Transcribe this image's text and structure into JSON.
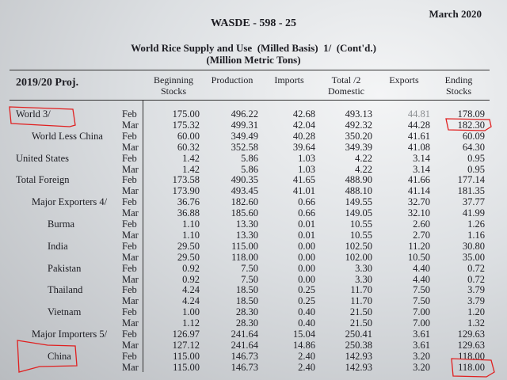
{
  "date": "March 2020",
  "report": "WASDE - 598 - 25",
  "title": "World Rice Supply and Use  (Milled Basis)  1/  (Cont'd.)",
  "subtitle": "(Million Metric Tons)",
  "period": "2019/20 Proj.",
  "columns": [
    "Beginning Stocks",
    "Production",
    "Imports",
    "Total /2 Domestic",
    "Exports",
    "Ending Stocks"
  ],
  "column_lines": [
    [
      "Beginning",
      "Stocks"
    ],
    [
      "Production",
      ""
    ],
    [
      "Imports",
      ""
    ],
    [
      "Total /2",
      "Domestic"
    ],
    [
      "Exports",
      ""
    ],
    [
      "Ending",
      "Stocks"
    ]
  ],
  "annotation_color": "#e02020",
  "rows": [
    {
      "name": "World  3/",
      "indent": 0,
      "month": "Feb",
      "v": [
        "175.00",
        "496.22",
        "42.68",
        "493.13",
        "44.81",
        "178.09"
      ]
    },
    {
      "name": "",
      "indent": 0,
      "month": "Mar",
      "v": [
        "175.32",
        "499.31",
        "42.04",
        "492.32",
        "44.28",
        "182.30"
      ]
    },
    {
      "name": "World Less China",
      "indent": 1,
      "month": "Feb",
      "v": [
        "60.00",
        "349.49",
        "40.28",
        "350.20",
        "41.61",
        "60.09"
      ]
    },
    {
      "name": "",
      "indent": 0,
      "month": "Mar",
      "v": [
        "60.32",
        "352.58",
        "39.64",
        "349.39",
        "41.08",
        "64.30"
      ]
    },
    {
      "name": "United States",
      "indent": 0,
      "month": "Feb",
      "v": [
        "1.42",
        "5.86",
        "1.03",
        "4.22",
        "3.14",
        "0.95"
      ]
    },
    {
      "name": "",
      "indent": 0,
      "month": "Mar",
      "v": [
        "1.42",
        "5.86",
        "1.03",
        "4.22",
        "3.14",
        "0.95"
      ]
    },
    {
      "name": "Total Foreign",
      "indent": 0,
      "month": "Feb",
      "v": [
        "173.58",
        "490.35",
        "41.65",
        "488.90",
        "41.66",
        "177.14"
      ]
    },
    {
      "name": "",
      "indent": 0,
      "month": "Mar",
      "v": [
        "173.90",
        "493.45",
        "41.01",
        "488.10",
        "41.14",
        "181.35"
      ]
    },
    {
      "name": "Major Exporters  4/",
      "indent": 1,
      "month": "Feb",
      "v": [
        "36.76",
        "182.60",
        "0.66",
        "149.55",
        "32.70",
        "37.77"
      ]
    },
    {
      "name": "",
      "indent": 0,
      "month": "Mar",
      "v": [
        "36.88",
        "185.60",
        "0.66",
        "149.05",
        "32.10",
        "41.99"
      ]
    },
    {
      "name": "Burma",
      "indent": 2,
      "month": "Feb",
      "v": [
        "1.10",
        "13.30",
        "0.01",
        "10.55",
        "2.60",
        "1.26"
      ]
    },
    {
      "name": "",
      "indent": 0,
      "month": "Mar",
      "v": [
        "1.10",
        "13.30",
        "0.01",
        "10.55",
        "2.70",
        "1.16"
      ]
    },
    {
      "name": "India",
      "indent": 2,
      "month": "Feb",
      "v": [
        "29.50",
        "115.00",
        "0.00",
        "102.50",
        "11.20",
        "30.80"
      ]
    },
    {
      "name": "",
      "indent": 0,
      "month": "Mar",
      "v": [
        "29.50",
        "118.00",
        "0.00",
        "102.00",
        "10.50",
        "35.00"
      ]
    },
    {
      "name": "Pakistan",
      "indent": 2,
      "month": "Feb",
      "v": [
        "0.92",
        "7.50",
        "0.00",
        "3.30",
        "4.40",
        "0.72"
      ]
    },
    {
      "name": "",
      "indent": 0,
      "month": "Mar",
      "v": [
        "0.92",
        "7.50",
        "0.00",
        "3.30",
        "4.40",
        "0.72"
      ]
    },
    {
      "name": "Thailand",
      "indent": 2,
      "month": "Feb",
      "v": [
        "4.24",
        "18.50",
        "0.25",
        "11.70",
        "7.50",
        "3.79"
      ]
    },
    {
      "name": "",
      "indent": 0,
      "month": "Mar",
      "v": [
        "4.24",
        "18.50",
        "0.25",
        "11.70",
        "7.50",
        "3.79"
      ]
    },
    {
      "name": "Vietnam",
      "indent": 2,
      "month": "Feb",
      "v": [
        "1.00",
        "28.30",
        "0.40",
        "21.50",
        "7.00",
        "1.20"
      ]
    },
    {
      "name": "",
      "indent": 0,
      "month": "Mar",
      "v": [
        "1.12",
        "28.30",
        "0.40",
        "21.50",
        "7.00",
        "1.32"
      ]
    },
    {
      "name": "Major Importers  5/",
      "indent": 1,
      "month": "Feb",
      "v": [
        "126.97",
        "241.64",
        "15.04",
        "250.41",
        "3.61",
        "129.63"
      ]
    },
    {
      "name": "",
      "indent": 0,
      "month": "Mar",
      "v": [
        "127.12",
        "241.64",
        "14.86",
        "250.38",
        "3.61",
        "129.63"
      ]
    },
    {
      "name": "China",
      "indent": 2,
      "month": "Feb",
      "v": [
        "115.00",
        "146.73",
        "2.40",
        "142.93",
        "3.20",
        "118.00"
      ]
    },
    {
      "name": "",
      "indent": 0,
      "month": "Mar",
      "v": [
        "115.00",
        "146.73",
        "2.40",
        "142.93",
        "3.20",
        "118.00"
      ]
    }
  ]
}
